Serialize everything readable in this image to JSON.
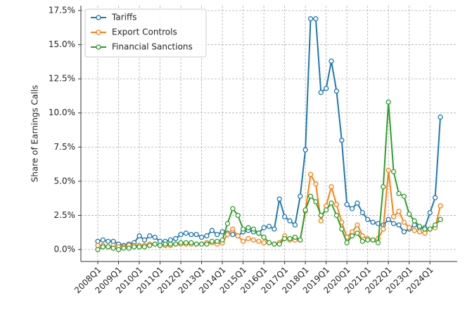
{
  "chart_data": {
    "type": "line",
    "ylabel": "Share of Earnings Calls",
    "categories": [
      "2008Q1",
      null,
      null,
      null,
      "2009Q1",
      null,
      null,
      null,
      "2010Q1",
      null,
      null,
      null,
      "2011Q1",
      null,
      null,
      null,
      "2012Q1",
      null,
      null,
      null,
      "2013Q1",
      null,
      null,
      null,
      "2014Q1",
      null,
      null,
      null,
      "2015Q1",
      null,
      null,
      null,
      "2016Q1",
      null,
      null,
      null,
      "2017Q1",
      null,
      null,
      null,
      "2018Q1",
      null,
      null,
      null,
      "2019Q1",
      null,
      null,
      null,
      "2020Q1",
      null,
      null,
      null,
      "2021Q1",
      null,
      null,
      null,
      "2022Q1",
      null,
      null,
      null,
      "2023Q1",
      null,
      null,
      null,
      "2024Q1",
      null,
      null
    ],
    "series": [
      {
        "name": "Tariffs",
        "color": "#1f77b4",
        "values": [
          0.6,
          0.7,
          0.6,
          0.6,
          0.4,
          0.3,
          0.4,
          0.5,
          1.0,
          0.7,
          1.0,
          0.9,
          0.6,
          0.6,
          0.7,
          0.8,
          1.1,
          1.2,
          1.1,
          1.1,
          0.9,
          1.0,
          1.4,
          1.1,
          1.3,
          1.2,
          1.1,
          1.0,
          1.3,
          1.4,
          1.3,
          1.2,
          1.6,
          1.7,
          1.5,
          3.7,
          2.4,
          2.1,
          1.8,
          3.9,
          7.3,
          16.9,
          16.9,
          11.5,
          11.8,
          13.8,
          11.6,
          8.0,
          3.3,
          3.0,
          3.4,
          2.7,
          2.2,
          2.0,
          1.9,
          1.8,
          2.2,
          1.9,
          1.8,
          1.3,
          1.5,
          1.8,
          1.6,
          1.6,
          2.7,
          3.8,
          9.7
        ]
      },
      {
        "name": "Export Controls",
        "color": "#ff7f0e",
        "values": [
          0.3,
          0.3,
          0.2,
          0.3,
          0.2,
          0.2,
          0.3,
          0.3,
          0.3,
          0.3,
          0.4,
          0.4,
          0.3,
          0.3,
          0.3,
          0.4,
          0.4,
          0.4,
          0.4,
          0.4,
          0.4,
          0.5,
          0.5,
          0.4,
          0.5,
          1.1,
          1.5,
          1.0,
          0.6,
          0.8,
          0.7,
          0.6,
          0.5,
          0.5,
          0.4,
          0.5,
          1.0,
          0.7,
          0.7,
          0.7,
          2.8,
          5.5,
          4.8,
          2.1,
          3.2,
          4.6,
          3.3,
          2.0,
          0.9,
          1.3,
          1.8,
          1.0,
          0.8,
          0.7,
          0.8,
          1.5,
          5.8,
          2.4,
          2.8,
          2.0,
          1.6,
          1.4,
          1.3,
          1.2,
          1.5,
          1.6,
          3.2
        ]
      },
      {
        "name": "Financial Sanctions",
        "color": "#2ca02c",
        "values": [
          0.0,
          0.2,
          0.2,
          0.1,
          0.0,
          0.1,
          0.1,
          0.2,
          0.2,
          0.2,
          0.3,
          0.4,
          0.3,
          0.4,
          0.4,
          0.4,
          0.5,
          0.5,
          0.5,
          0.4,
          0.4,
          0.4,
          0.6,
          0.6,
          0.7,
          1.9,
          3.0,
          2.5,
          1.5,
          1.6,
          1.5,
          1.2,
          0.9,
          0.5,
          0.4,
          0.4,
          0.8,
          0.8,
          0.9,
          0.7,
          2.9,
          3.9,
          3.5,
          2.5,
          2.9,
          3.4,
          2.5,
          1.5,
          0.5,
          1.0,
          1.2,
          0.6,
          0.7,
          0.7,
          0.5,
          4.6,
          10.8,
          5.7,
          4.1,
          3.9,
          2.6,
          2.1,
          1.7,
          1.5,
          1.5,
          1.8,
          2.2
        ]
      }
    ],
    "ylim": [
      -0.875,
      17.86
    ],
    "yticks": [
      {
        "value": 0,
        "label": "0.0%"
      },
      {
        "value": 2.5,
        "label": "2.5%"
      },
      {
        "value": 5,
        "label": "5.0%"
      },
      {
        "value": 7.5,
        "label": "7.5%"
      },
      {
        "value": 10,
        "label": "10.0%"
      },
      {
        "value": 12.5,
        "label": "12.5%"
      },
      {
        "value": 15,
        "label": "15.0%"
      },
      {
        "value": 17.5,
        "label": "17.5%"
      }
    ],
    "grid": true,
    "legend": "upper left"
  }
}
